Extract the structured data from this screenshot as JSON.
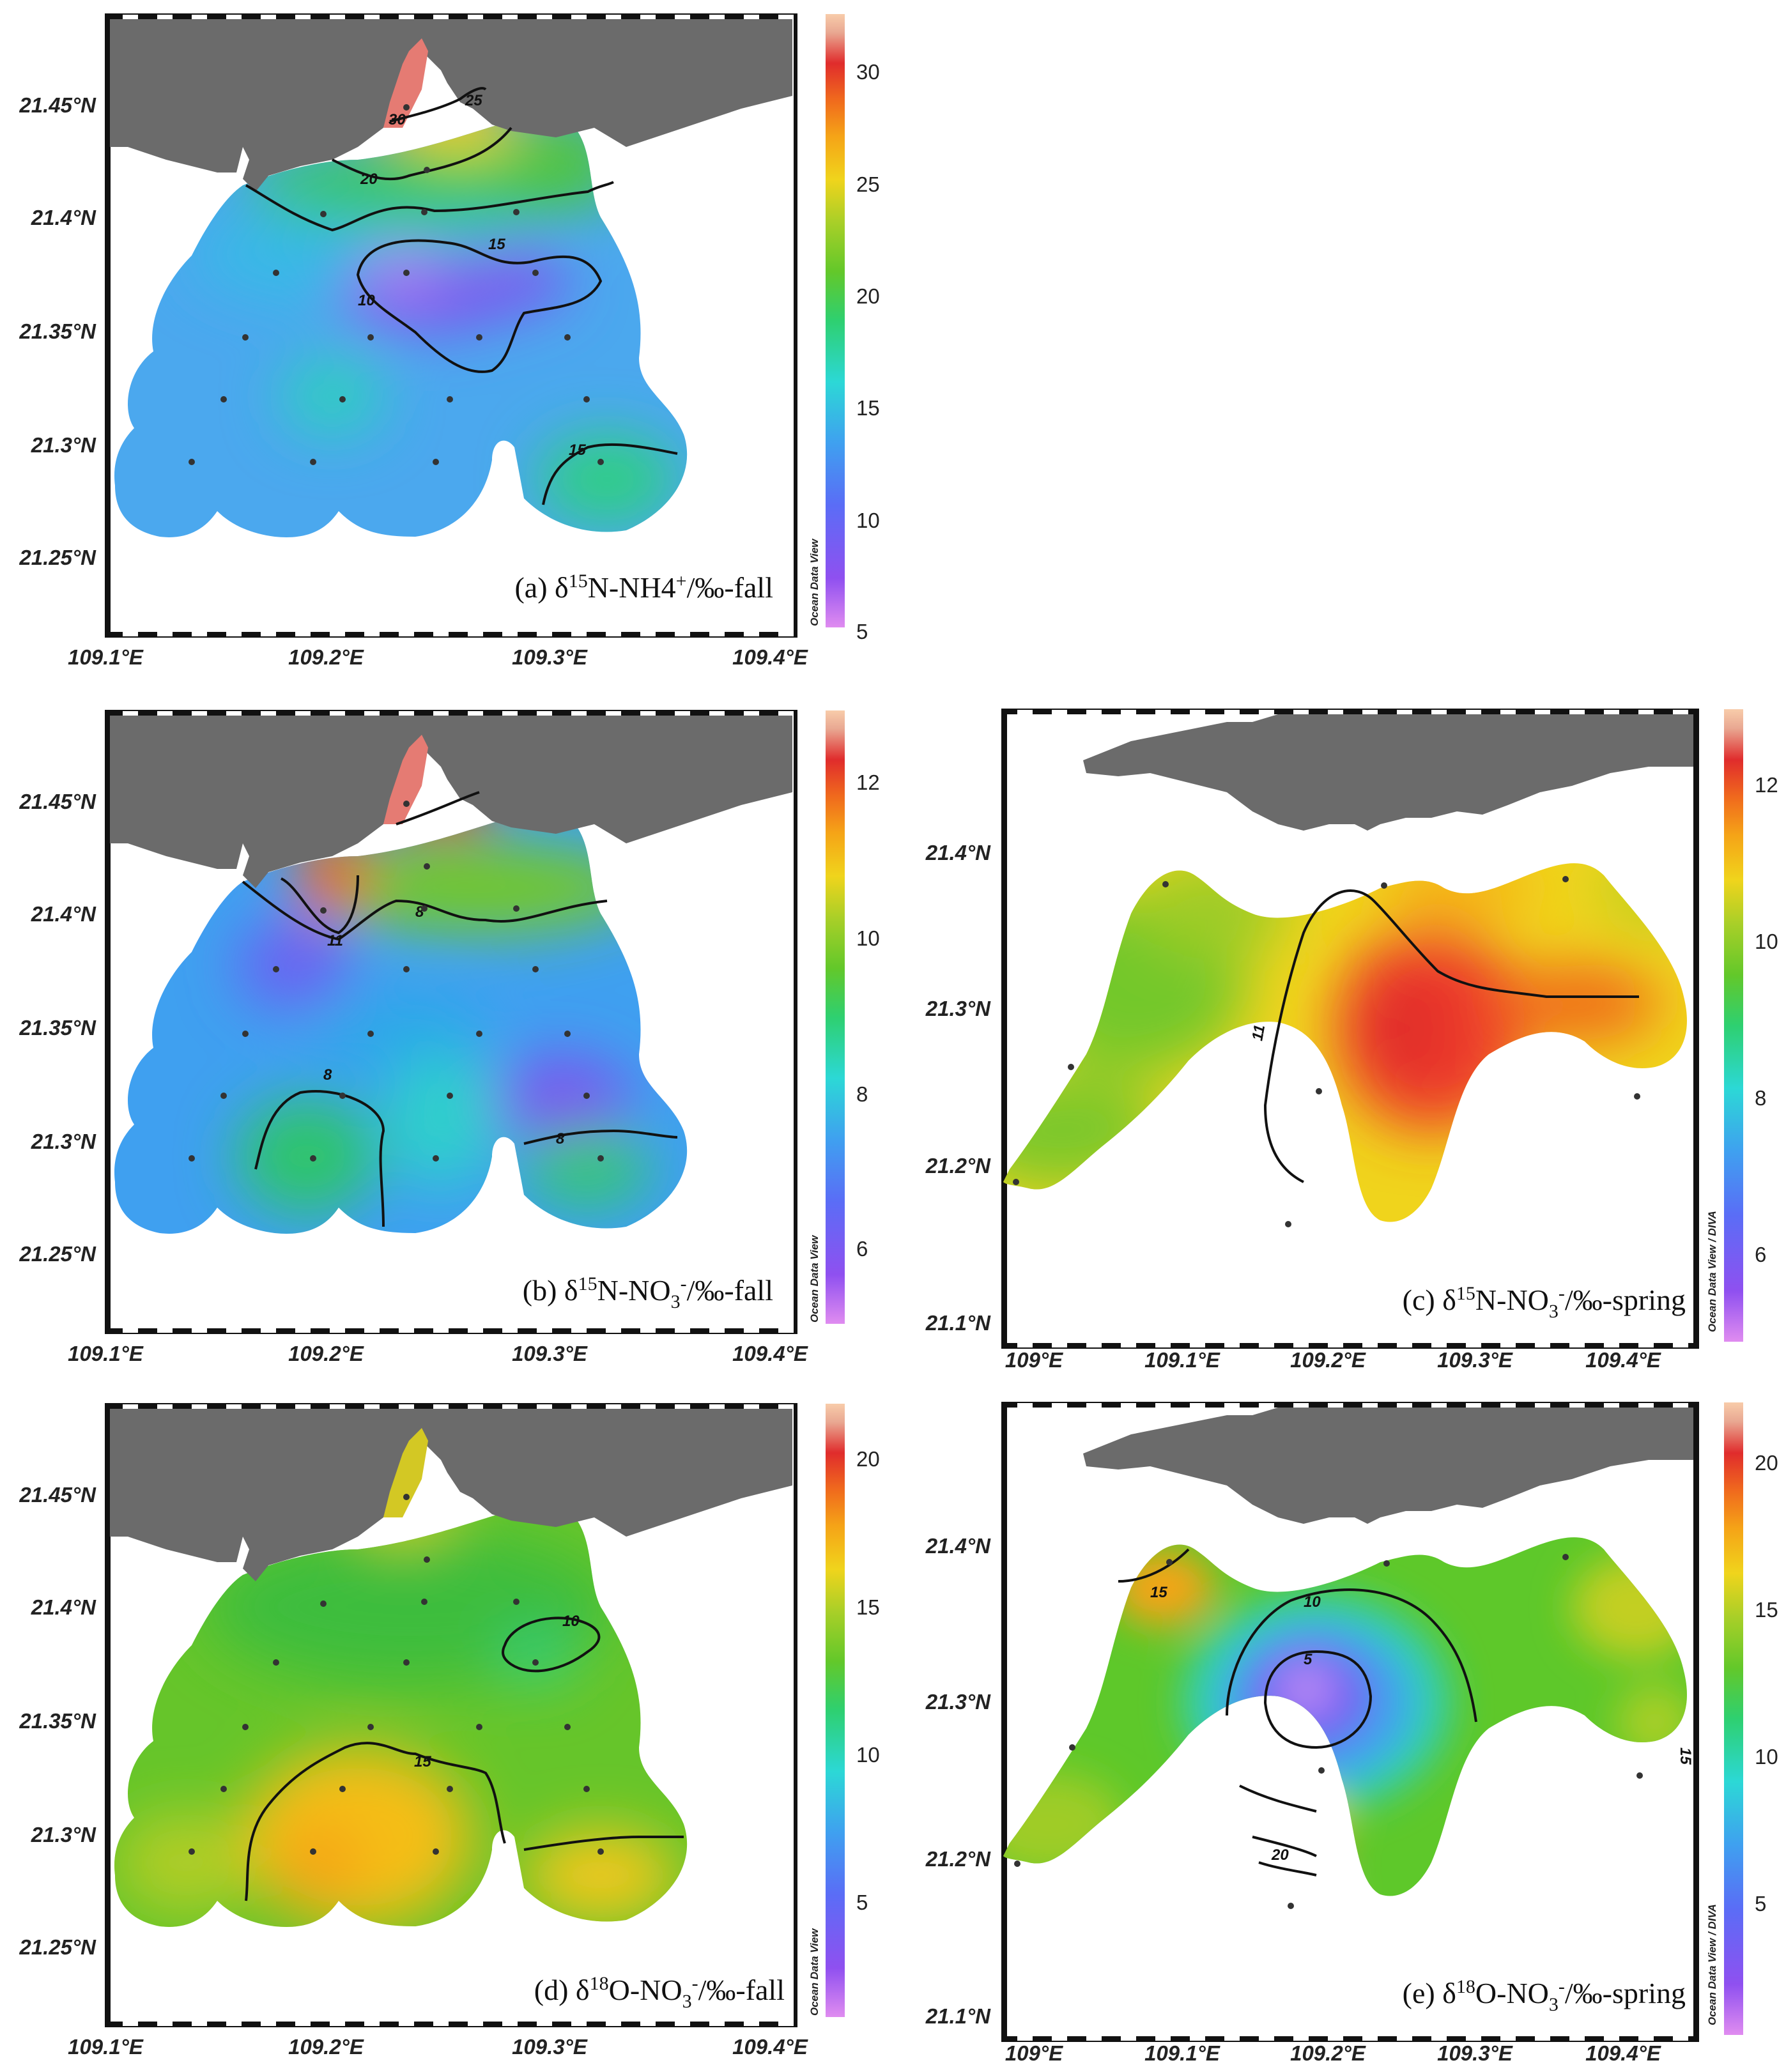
{
  "colors": {
    "land": "#6b6b6b",
    "contour": "#111111",
    "station": "#333333",
    "scale": [
      "#e08cf0",
      "#8f50f0",
      "#5a6df6",
      "#3fa0f0",
      "#2cd8d6",
      "#2ed070",
      "#63c82a",
      "#a8cf28",
      "#f0d41c",
      "#f5a417",
      "#f06a1d",
      "#e02c2c",
      "#e9a892",
      "#f8ccaa"
    ]
  },
  "panels": [
    {
      "id": "a",
      "caption": "(a) δ15N-NH4+/‰-fall",
      "caption_parts": [
        "(a) δ",
        "15",
        "N-NH4",
        "+",
        "/‰-fall"
      ],
      "ylabels": [
        "21.45°N",
        "21.4°N",
        "21.35°N",
        "21.3°N",
        "21.25°N"
      ],
      "xlabels": [
        "109.1°E",
        "109.2°E",
        "109.3°E",
        "109.4°E"
      ],
      "colorbar_ticks": [
        "30",
        "25",
        "20",
        "15",
        "10",
        "5"
      ],
      "colorbar_max": 32,
      "odv_label": "Ocean Data View",
      "contour_labels": [
        "30",
        "25",
        "20",
        "15",
        "10",
        "15"
      ],
      "field": {
        "base": 13,
        "hot": [
          {
            "n": "north-gate",
            "v": 30
          },
          {
            "n": "northeast-bay",
            "v": 22
          },
          {
            "n": "southeast-bay",
            "v": 17
          },
          {
            "n": "central",
            "v": 8
          }
        ]
      }
    },
    {
      "id": "b",
      "caption": "(b) δ15N-NO3-/‰-fall",
      "caption_parts": [
        "(b) δ",
        "15",
        "N-NO",
        "3",
        "-",
        "/‰-fall"
      ],
      "ylabels": [
        "21.45°N",
        "21.4°N",
        "21.35°N",
        "21.3°N",
        "21.25°N"
      ],
      "xlabels": [
        "109.1°E",
        "109.2°E",
        "109.3°E",
        "109.4°E"
      ],
      "colorbar_ticks": [
        "12",
        "10",
        "8",
        "6"
      ],
      "colorbar_max": 13,
      "odv_label": "Ocean Data View",
      "contour_labels": [
        "11",
        "8",
        "8",
        "8"
      ]
    },
    {
      "id": "c",
      "caption": "(c) δ15N-NO3-/‰-spring",
      "caption_parts": [
        "(c) δ",
        "15",
        "N-NO",
        "3",
        "-",
        "/‰-spring"
      ],
      "ylabels": [
        "21.4°N",
        "21.3°N",
        "21.2°N",
        "21.1°N"
      ],
      "xlabels": [
        "109°E",
        "109.1°E",
        "109.2°E",
        "109.3°E",
        "109.4°E"
      ],
      "colorbar_ticks": [
        "12",
        "10",
        "8",
        "6"
      ],
      "colorbar_max": 13,
      "odv_label": "Ocean Data View / DIVA",
      "contour_labels": [
        "11"
      ]
    },
    {
      "id": "d",
      "caption": "(d) δ18O-NO3-/‰-fall",
      "caption_parts": [
        "(d) δ",
        "18",
        "O-NO",
        "3",
        "-",
        "/‰-fall"
      ],
      "ylabels": [
        "21.45°N",
        "21.4°N",
        "21.35°N",
        "21.3°N",
        "21.25°N"
      ],
      "xlabels": [
        "109.1°E",
        "109.2°E",
        "109.3°E",
        "109.4°E"
      ],
      "colorbar_ticks": [
        "20",
        "15",
        "10",
        "5"
      ],
      "colorbar_max": 22,
      "odv_label": "Ocean Data View",
      "contour_labels": [
        "10",
        "15"
      ]
    },
    {
      "id": "e",
      "caption": "(e) δ18O-NO3-/‰-spring",
      "caption_parts": [
        "(e) δ",
        "18",
        "O-NO",
        "3",
        "-",
        "/‰-spring"
      ],
      "ylabels": [
        "21.4°N",
        "21.3°N",
        "21.2°N",
        "21.1°N"
      ],
      "xlabels": [
        "109°E",
        "109.1°E",
        "109.2°E",
        "109.3°E",
        "109.4°E"
      ],
      "colorbar_ticks": [
        "20",
        "15",
        "10",
        "5"
      ],
      "colorbar_max": 22,
      "odv_label": "Ocean Data View / DIVA",
      "contour_labels": [
        "15",
        "10",
        "5",
        "15",
        "20",
        "15"
      ]
    }
  ]
}
